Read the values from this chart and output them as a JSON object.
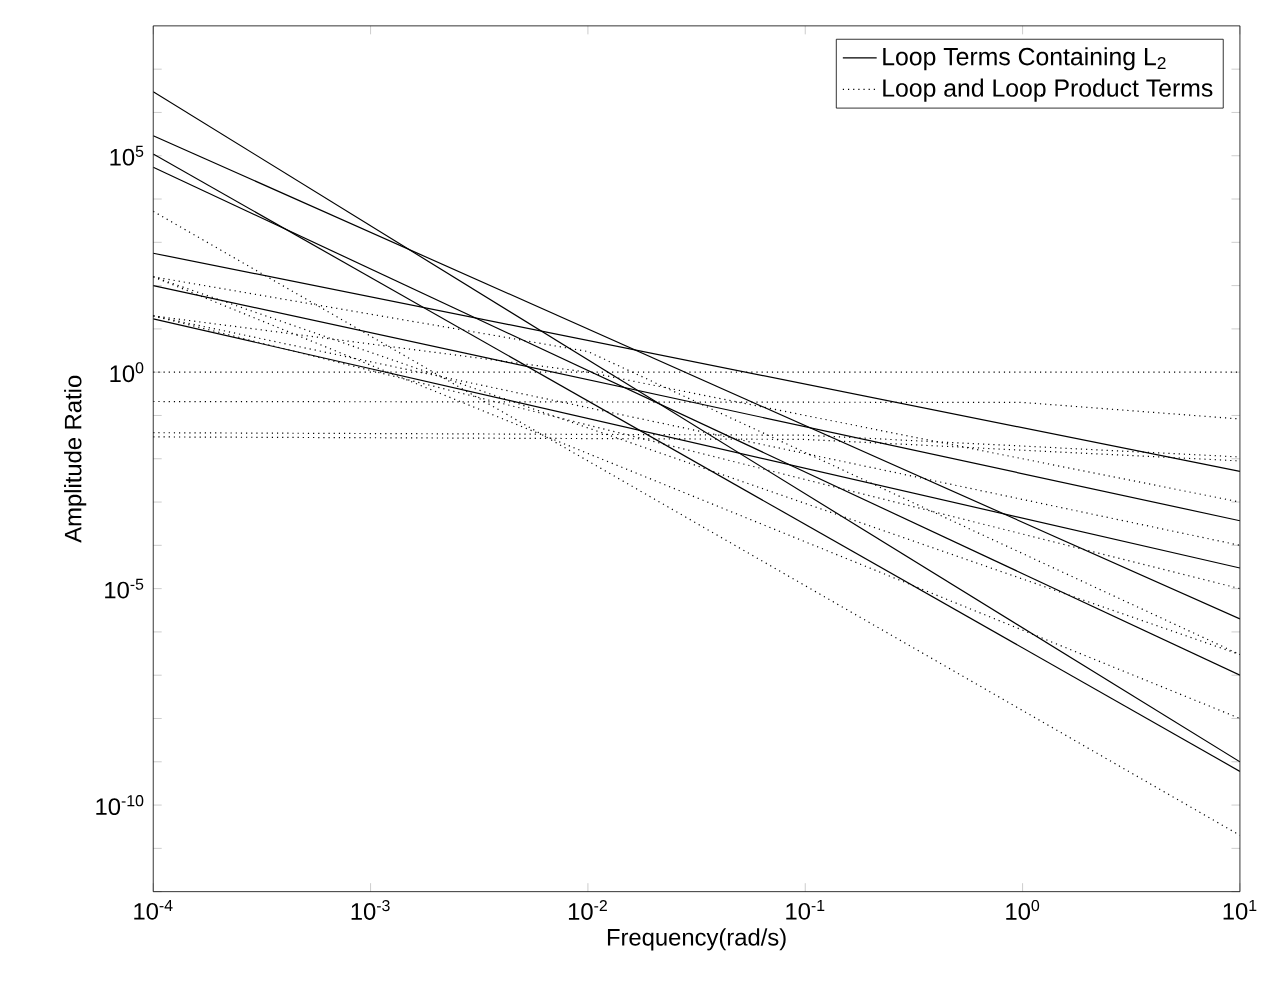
{
  "chart_data": {
    "type": "line",
    "log": "xy",
    "xlabel": "Frequency(rad/s)",
    "ylabel": "Amplitude Ratio",
    "legend": "top right",
    "xlim": [
      0.0001,
      10
    ],
    "ylim": [
      1e-12,
      100000000.0
    ],
    "xticks": [
      {
        "value": 0.0001,
        "label": "10$^{-4}$"
      },
      {
        "value": 0.001,
        "label": "10$^{-3}$"
      },
      {
        "value": 0.01,
        "label": "10$^{-2}$"
      },
      {
        "value": 0.1,
        "label": "10$^{-1}$"
      },
      {
        "value": 1,
        "label": "10$^{0}$"
      },
      {
        "value": 10,
        "label": "10$^{1}$"
      }
    ],
    "yticks": [
      {
        "value": 1e-12,
        "label": null
      },
      {
        "value": 1e-11,
        "label": null
      },
      {
        "value": 1e-10,
        "label": "10$^{-10}$"
      },
      {
        "value": 1e-09,
        "label": null
      },
      {
        "value": 1e-08,
        "label": null
      },
      {
        "value": 1e-07,
        "label": null
      },
      {
        "value": 1e-06,
        "label": null
      },
      {
        "value": 1e-05,
        "label": "10$^{-5}$"
      },
      {
        "value": 0.0001,
        "label": null
      },
      {
        "value": 0.001,
        "label": null
      },
      {
        "value": 0.01,
        "label": null
      },
      {
        "value": 0.1,
        "label": null
      },
      {
        "value": 1,
        "label": "10$^{0}$"
      },
      {
        "value": 10,
        "label": null
      },
      {
        "value": 100,
        "label": null
      },
      {
        "value": 1000,
        "label": null
      },
      {
        "value": 10000.0,
        "label": null
      },
      {
        "value": 100000.0,
        "label": "10$^{5}$"
      },
      {
        "value": 1000000.0,
        "label": null
      },
      {
        "value": 10000000.0,
        "label": null
      }
    ],
    "series": [
      {
        "name": "Loop Terms Containing L$_{2}$",
        "color": "#000000",
        "line_style": "solid",
        "x": [
          0.0001,
          10
        ],
        "values": [
          3000000.0,
          1e-09
        ]
      },
      {
        "color": "#000000",
        "line_style": "solid",
        "x": [
          0.0001,
          10
        ],
        "values": [
          110000.0,
          6e-10
        ]
      },
      {
        "color": "#000000",
        "line_style": "solid",
        "x": [
          0.0001,
          10
        ],
        "values": [
          54000.0,
          1e-07
        ]
      },
      {
        "color": "#000000",
        "line_style": "solid",
        "x": [
          0.0001,
          10
        ],
        "values": [
          290000.0,
          2e-06
        ]
      },
      {
        "color": "#000000",
        "line_style": "solid",
        "x": [
          0.0001,
          10
        ],
        "values": [
          560,
          0.0051
        ]
      },
      {
        "color": "#000000",
        "line_style": "solid",
        "x": [
          0.0001,
          10
        ],
        "values": [
          100,
          0.00037
        ]
      },
      {
        "color": "#000000",
        "line_style": "solid",
        "x": [
          0.0001,
          10
        ],
        "values": [
          17,
          3e-05
        ]
      },
      {
        "name": "Loop and Loop Product Terms",
        "color": "#000000",
        "line_style": "dotted",
        "x": [
          0.0001,
          10
        ],
        "values": [
          5200,
          2e-11
        ]
      },
      {
        "color": "#000000",
        "line_style": "dotted",
        "x": [
          0.0001,
          10
        ],
        "values": [
          160,
          1e-08
        ]
      },
      {
        "color": "#000000",
        "line_style": "dotted",
        "x": [
          0.0001,
          10
        ],
        "values": [
          160,
          3e-07
        ]
      },
      {
        "color": "#000000",
        "line_style": "dotted",
        "x": [
          0.0001,
          0.01,
          10
        ],
        "values": [
          160,
          3,
          3e-07
        ]
      },
      {
        "color": "#000000",
        "line_style": "dotted",
        "x": [
          0.0001,
          10
        ],
        "values": [
          20,
          1e-05
        ]
      },
      {
        "color": "#000000",
        "line_style": "dotted",
        "x": [
          0.0001,
          10
        ],
        "values": [
          20,
          0.0001
        ]
      },
      {
        "color": "#000000",
        "line_style": "dotted",
        "x": [
          0.0001,
          0.01,
          10
        ],
        "values": [
          20,
          1,
          0.001
        ]
      },
      {
        "color": "#000000",
        "line_style": "dotted",
        "x": [
          0.0001,
          10
        ],
        "values": [
          1,
          1
        ]
      },
      {
        "color": "#000000",
        "line_style": "dotted",
        "x": [
          0.0001,
          1,
          10
        ],
        "values": [
          0.21,
          0.2,
          0.083
        ]
      },
      {
        "color": "#000000",
        "line_style": "dotted",
        "x": [
          0.0001,
          0.1,
          10
        ],
        "values": [
          0.04,
          0.035,
          0.011
        ]
      },
      {
        "color": "#000000",
        "line_style": "dotted",
        "x": [
          0.0001,
          0.1,
          10
        ],
        "values": [
          0.032,
          0.028,
          0.0089
        ]
      }
    ]
  }
}
